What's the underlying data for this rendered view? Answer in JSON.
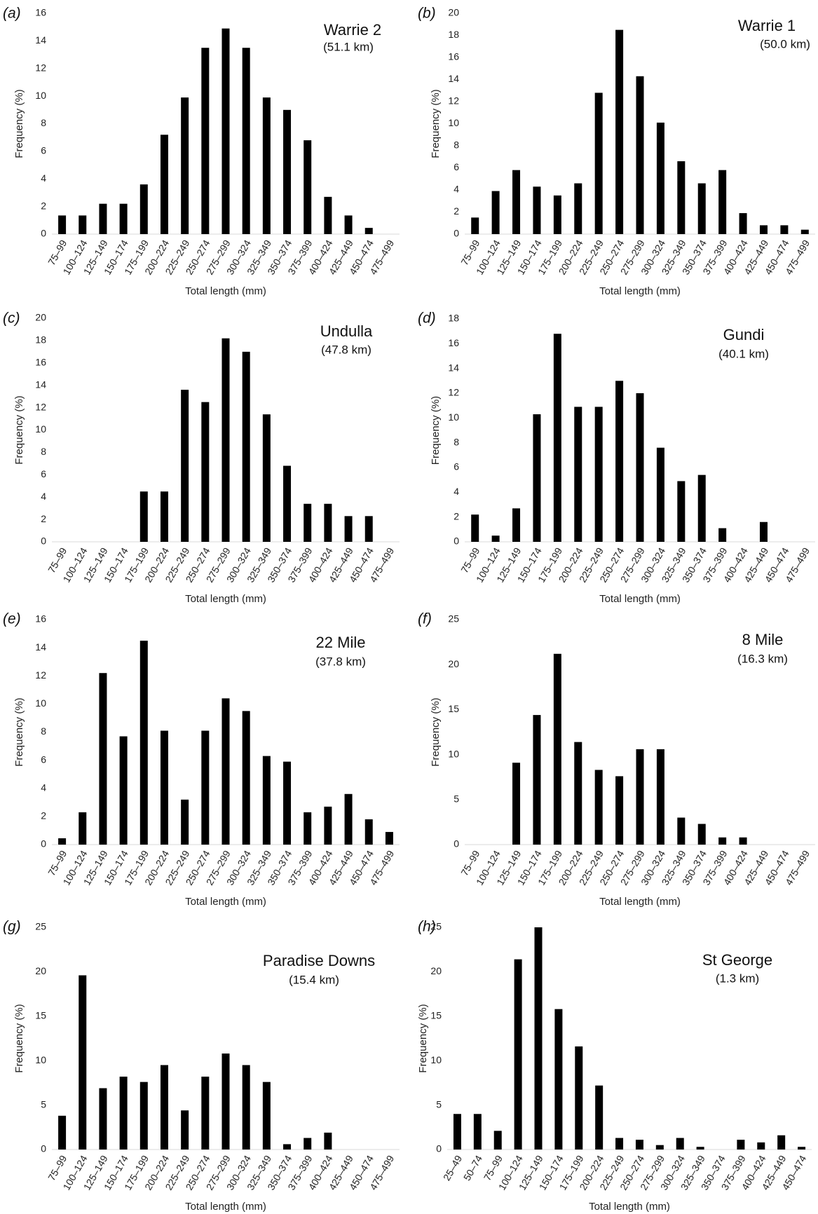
{
  "style": {
    "bar_color": "#000000",
    "axis_color": "#d9d9d9",
    "text_color": "#222222"
  },
  "chart_data": [
    {
      "type": "bar",
      "panel": "(a)",
      "title": "Warrie 2",
      "subtitle": "(51.1 km)",
      "xlabel": "Total length (mm)",
      "ylabel": "Frequency (%)",
      "grid": false,
      "categories": [
        "75–99",
        "100–124",
        "125–149",
        "150–174",
        "175–199",
        "200–224",
        "225–249",
        "250–274",
        "275–299",
        "300–324",
        "325–349",
        "350–374",
        "375–399",
        "400–424",
        "425–449",
        "450–474",
        "475–499"
      ],
      "values": [
        1.35,
        1.35,
        2.2,
        2.2,
        3.6,
        7.2,
        9.9,
        13.5,
        14.9,
        13.5,
        9.9,
        9.0,
        6.8,
        2.7,
        1.35,
        0.45,
        0
      ],
      "ylim": [
        0,
        16
      ],
      "yticks": [
        0,
        2,
        4,
        6,
        8,
        10,
        12,
        14,
        16
      ]
    },
    {
      "type": "bar",
      "panel": "(b)",
      "title": "Warrie 1",
      "subtitle": "(50.0 km)",
      "xlabel": "Total length (mm)",
      "ylabel": "Frequency (%)",
      "grid": false,
      "categories": [
        "75–99",
        "100–124",
        "125–149",
        "150–174",
        "175–199",
        "200–224",
        "225–249",
        "250–274",
        "275–299",
        "300–324",
        "325–349",
        "350–374",
        "375–399",
        "400–424",
        "425–449",
        "450–474",
        "475–499"
      ],
      "values": [
        1.5,
        3.9,
        5.8,
        4.3,
        3.5,
        4.6,
        12.8,
        18.5,
        14.3,
        10.1,
        6.6,
        4.6,
        5.8,
        1.9,
        0.8,
        0.8,
        0.4
      ],
      "ylim": [
        0,
        20
      ],
      "yticks": [
        0,
        2,
        4,
        6,
        8,
        10,
        12,
        14,
        16,
        18,
        20
      ]
    },
    {
      "type": "bar",
      "panel": "(c)",
      "title": "Undulla",
      "subtitle": "(47.8 km)",
      "xlabel": "Total length (mm)",
      "ylabel": "Frequency (%)",
      "grid": false,
      "categories": [
        "75–99",
        "100–124",
        "125–149",
        "150–174",
        "175–199",
        "200–224",
        "225–249",
        "250–274",
        "275–299",
        "300–324",
        "325–349",
        "350–374",
        "375–399",
        "400–424",
        "425–449",
        "450–474",
        "475–499"
      ],
      "values": [
        0,
        0,
        0,
        0,
        4.5,
        4.5,
        13.6,
        12.5,
        18.2,
        17.0,
        11.4,
        6.8,
        3.4,
        3.4,
        2.3,
        2.3,
        0
      ],
      "ylim": [
        0,
        20
      ],
      "yticks": [
        0,
        2,
        4,
        6,
        8,
        10,
        12,
        14,
        16,
        18,
        20
      ]
    },
    {
      "type": "bar",
      "panel": "(d)",
      "title": "Gundi",
      "subtitle": "(40.1 km)",
      "xlabel": "Total length (mm)",
      "ylabel": "Frequency (%)",
      "grid": false,
      "categories": [
        "75–99",
        "100–124",
        "125–149",
        "150–174",
        "175–199",
        "200–224",
        "225–249",
        "250–274",
        "275–299",
        "300–324",
        "325–349",
        "350–374",
        "375–399",
        "400–424",
        "425–449",
        "450–474",
        "475–499"
      ],
      "values": [
        2.2,
        0.5,
        2.7,
        10.3,
        16.8,
        10.9,
        10.9,
        13.0,
        12.0,
        7.6,
        4.9,
        5.4,
        1.1,
        0,
        1.6,
        0,
        0
      ],
      "ylim": [
        0,
        18
      ],
      "yticks": [
        0,
        2,
        4,
        6,
        8,
        10,
        12,
        14,
        16,
        18
      ]
    },
    {
      "type": "bar",
      "panel": "(e)",
      "title": "22 Mile",
      "subtitle": "(37.8 km)",
      "xlabel": "Total length (mm)",
      "ylabel": "Frequency (%)",
      "grid": false,
      "categories": [
        "75–99",
        "100–124",
        "125–149",
        "150–174",
        "175–199",
        "200–224",
        "225–249",
        "250–274",
        "275–299",
        "300–324",
        "325–349",
        "350–374",
        "375–399",
        "400–424",
        "425–449",
        "450–474",
        "475–499"
      ],
      "values": [
        0.45,
        2.3,
        12.2,
        7.7,
        14.5,
        8.1,
        3.2,
        8.1,
        10.4,
        9.5,
        6.3,
        5.9,
        2.3,
        2.7,
        3.6,
        1.8,
        0.9
      ],
      "ylim": [
        0,
        16
      ],
      "yticks": [
        0,
        2,
        4,
        6,
        8,
        10,
        12,
        14,
        16
      ]
    },
    {
      "type": "bar",
      "panel": "(f)",
      "title": "8 Mile",
      "subtitle": "(16.3 km)",
      "xlabel": "Total length (mm)",
      "ylabel": "Frequency (%)",
      "grid": false,
      "categories": [
        "75–99",
        "100–124",
        "125–149",
        "150–174",
        "175–199",
        "200–224",
        "225–249",
        "250–274",
        "275–299",
        "300–324",
        "325–349",
        "350–374",
        "375–399",
        "400–424",
        "425–449",
        "450–474",
        "475–499"
      ],
      "values": [
        0,
        0,
        9.1,
        14.4,
        21.2,
        11.4,
        8.3,
        7.6,
        10.6,
        10.6,
        3.0,
        2.3,
        0.8,
        0.8,
        0,
        0,
        0
      ],
      "ylim": [
        0,
        25
      ],
      "yticks": [
        0,
        5,
        10,
        15,
        20,
        25
      ]
    },
    {
      "type": "bar",
      "panel": "(g)",
      "title": "Paradise Downs",
      "subtitle": "(15.4 km)",
      "xlabel": "Total length (mm)",
      "ylabel": "Frequency (%)",
      "grid": false,
      "categories": [
        "75–99",
        "100–124",
        "125–149",
        "150–174",
        "175–199",
        "200–224",
        "225–249",
        "250–274",
        "275–299",
        "300–324",
        "325–349",
        "350–374",
        "375–399",
        "400–424",
        "425–449",
        "450–474",
        "475–499"
      ],
      "values": [
        3.8,
        19.6,
        6.9,
        8.2,
        7.6,
        9.5,
        4.4,
        8.2,
        10.8,
        9.5,
        7.6,
        0.6,
        1.3,
        1.9,
        0,
        0,
        0
      ],
      "ylim": [
        0,
        25
      ],
      "yticks": [
        0,
        5,
        10,
        15,
        20,
        25
      ]
    },
    {
      "type": "bar",
      "panel": "(h)",
      "title": "St George",
      "subtitle": "(1.3 km)",
      "xlabel": "Total length (mm)",
      "ylabel": "Frequency (%)",
      "grid": false,
      "categories": [
        "25–49",
        "50–74",
        "75–99",
        "100–124",
        "125–149",
        "150–174",
        "175–199",
        "200–224",
        "225–249",
        "250–274",
        "275–299",
        "300–324",
        "325–349",
        "350–374",
        "375–399",
        "400–424",
        "425–449",
        "450–474"
      ],
      "values": [
        4.0,
        4.0,
        2.1,
        21.4,
        25.0,
        15.8,
        11.6,
        7.2,
        1.3,
        1.1,
        0.5,
        1.3,
        0.3,
        0,
        1.1,
        0.8,
        1.6,
        0.3
      ],
      "ylim": [
        0,
        25
      ],
      "yticks": [
        0,
        5,
        10,
        15,
        20,
        25
      ]
    }
  ]
}
